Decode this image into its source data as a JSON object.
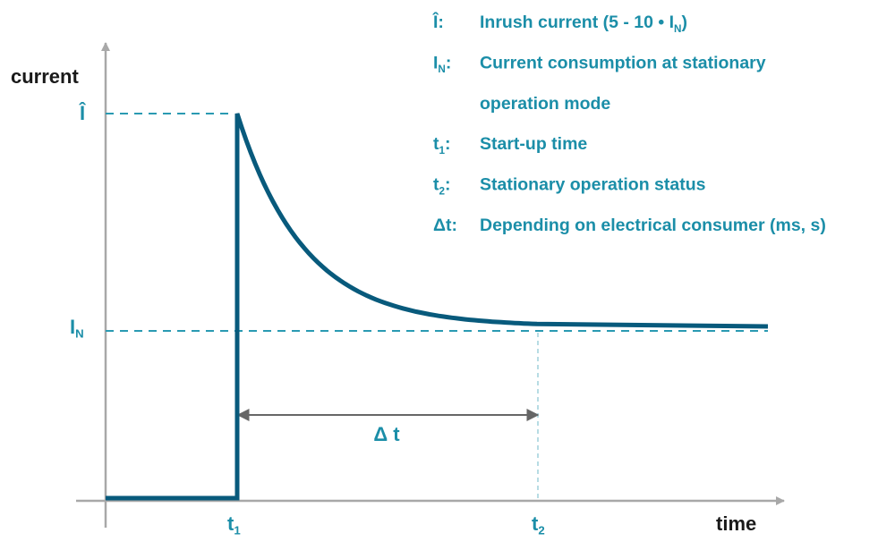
{
  "axes": {
    "y_label": [
      {
        "text": "current"
      }
    ],
    "x_label": [
      {
        "text": "time"
      }
    ]
  },
  "markers": {
    "peak": [
      {
        "text": "Î"
      }
    ],
    "nominal": [
      {
        "text": "I"
      },
      {
        "text": "N",
        "sub": true
      }
    ],
    "t1": [
      {
        "text": "t"
      },
      {
        "text": "1",
        "sub": true
      }
    ],
    "t2": [
      {
        "text": "t"
      },
      {
        "text": "2",
        "sub": true
      }
    ],
    "interval": [
      {
        "text": "Δ t"
      }
    ]
  },
  "legend": [
    {
      "symbol": [
        {
          "text": "Î:"
        }
      ],
      "lines": [
        [
          {
            "text": "Inrush current (5 - 10 • I"
          },
          {
            "text": "N",
            "sub": true
          },
          {
            "text": ")"
          }
        ]
      ]
    },
    {
      "symbol": [
        {
          "text": "I"
        },
        {
          "text": "N",
          "sub": true
        },
        {
          "text": ":"
        }
      ],
      "lines": [
        [
          {
            "text": "Current consumption at stationary"
          }
        ],
        [
          {
            "text": "operation mode"
          }
        ]
      ]
    },
    {
      "symbol": [
        {
          "text": "t"
        },
        {
          "text": "1",
          "sub": true
        },
        {
          "text": ":"
        }
      ],
      "lines": [
        [
          {
            "text": "Start-up time"
          }
        ]
      ]
    },
    {
      "symbol": [
        {
          "text": "t"
        },
        {
          "text": "2",
          "sub": true
        },
        {
          "text": ":"
        }
      ],
      "lines": [
        [
          {
            "text": "Stationary operation status"
          }
        ]
      ]
    },
    {
      "symbol": [
        {
          "text": "Δt:"
        }
      ],
      "lines": [
        [
          {
            "text": "Depending on electrical consumer (ms, s)"
          }
        ]
      ]
    }
  ]
}
